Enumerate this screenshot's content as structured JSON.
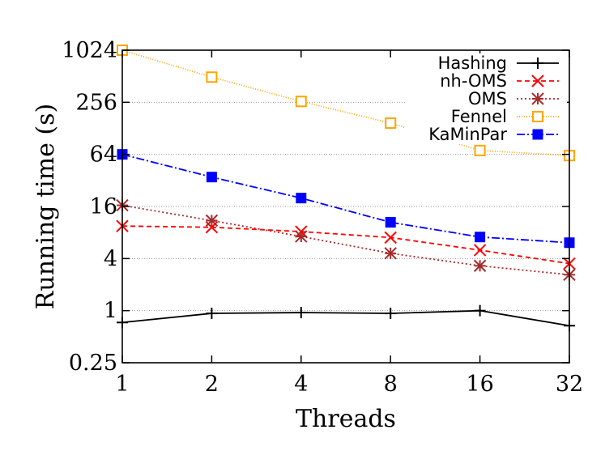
{
  "chart_data": {
    "type": "line",
    "xlabel": "Threads",
    "ylabel": "Running time (s)",
    "x": [
      1,
      2,
      4,
      8,
      16,
      32
    ],
    "x_scale": "log2",
    "y_scale": "log4",
    "ylim": [
      0.25,
      1024
    ],
    "yticks": [
      0.25,
      1,
      4,
      16,
      64,
      256,
      1024
    ],
    "ytick_labels": [
      "0.25",
      "1",
      "4",
      "16",
      "64",
      "256",
      "1024"
    ],
    "xtick_labels": [
      "1",
      "2",
      "4",
      "8",
      "16",
      "32"
    ],
    "grid": "horizontal dotted",
    "legend_placement": "top-right",
    "series": [
      {
        "name": "Hashing",
        "values": [
          0.73,
          0.93,
          0.95,
          0.93,
          1.0,
          0.67
        ],
        "color": "#000000",
        "dash": "",
        "marker": "plus"
      },
      {
        "name": "nh-OMS",
        "values": [
          9.5,
          9.2,
          8.2,
          7.0,
          5.0,
          3.5
        ],
        "color": "#ff0000",
        "dash": "6,4",
        "marker": "x"
      },
      {
        "name": "OMS",
        "values": [
          16.5,
          11.0,
          7.2,
          4.6,
          3.3,
          2.6
        ],
        "color": "#a52a2a",
        "dash": "2,3",
        "marker": "star"
      },
      {
        "name": "Fennel",
        "values": [
          1024,
          500,
          262,
          147,
          71,
          62
        ],
        "color": "#ffa500",
        "dash": "1,2",
        "marker": "open-square"
      },
      {
        "name": "KaMinPar",
        "values": [
          64,
          35,
          20,
          10.5,
          7.1,
          6.1
        ],
        "color": "#0000ff",
        "dash": "10,3,2,3",
        "marker": "filled-square"
      }
    ]
  }
}
